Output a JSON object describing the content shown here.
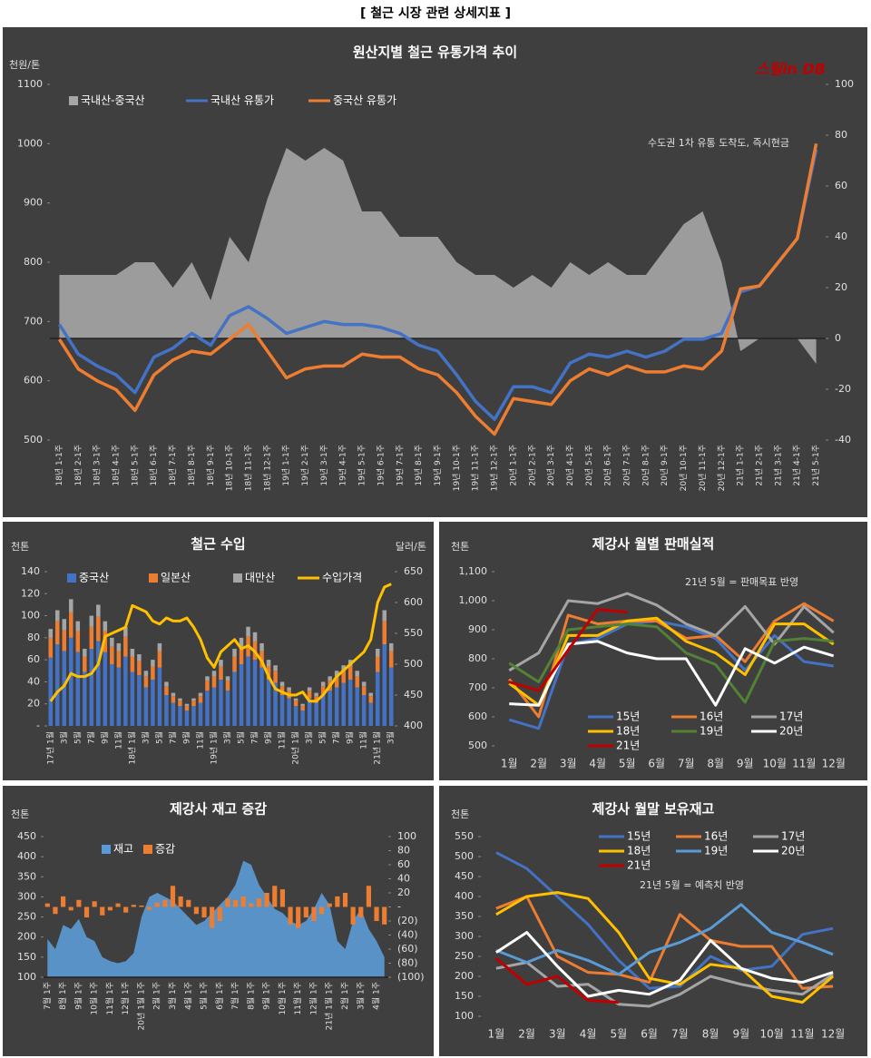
{
  "title": "[ 철근 시장 관련 상세지표 ]",
  "chart_data": [
    {
      "type": "combo",
      "title": "원산지별 철근 유통가격 추이",
      "y_label": "천원/톤",
      "annotation": "수도권 1차 유통 도착도, 즉시현금",
      "logo": "스틸in DB",
      "categories": [
        "18년 1-1주",
        "18년 2-1주",
        "18년 3-1주",
        "18년 4-1주",
        "18년 5-1주",
        "18년 6-1주",
        "18년 7-1주",
        "18년 8-1주",
        "18년 9-1주",
        "18년 10-1주",
        "18년 11-1주",
        "18년 12-1주",
        "19년 1-1주",
        "19년 2-1주",
        "19년 3-1주",
        "19년 4-1주",
        "19년 5-1주",
        "19년 6-1주",
        "19년 7-1주",
        "19년 8-1주",
        "19년 9-1주",
        "19년 10-1주",
        "19년 11-1주",
        "19년 12-1주",
        "20년 1-1주",
        "20년 2-1주",
        "20년 3-1주",
        "20년 4-1주",
        "20년 5-1주",
        "20년 6-1주",
        "20년 7-1주",
        "20년 8-1주",
        "20년 9-1주",
        "20년 10-1주",
        "20년 11-1주",
        "20년 12-1주",
        "21년 1-1주",
        "21년 2-1주",
        "21년 3-1주",
        "21년 4-1주",
        "21년 5-1주"
      ],
      "series": [
        {
          "name": "국내산-중국산",
          "mark": "area",
          "axis": "y2",
          "color": "#a6a6a6",
          "values": [
            25,
            25,
            25,
            25,
            30,
            30,
            20,
            30,
            15,
            40,
            30,
            55,
            75,
            70,
            75,
            70,
            50,
            50,
            40,
            40,
            40,
            30,
            25,
            25,
            20,
            25,
            20,
            30,
            25,
            30,
            25,
            25,
            35,
            45,
            50,
            30,
            -5,
            0,
            0,
            0,
            -10
          ]
        },
        {
          "name": "국내산 유통가",
          "mark": "line",
          "color": "#4472c4",
          "values": [
            695,
            645,
            625,
            610,
            580,
            640,
            655,
            680,
            660,
            710,
            725,
            705,
            680,
            690,
            700,
            695,
            695,
            690,
            680,
            660,
            650,
            610,
            565,
            535,
            590,
            590,
            580,
            630,
            645,
            640,
            650,
            640,
            650,
            670,
            670,
            680,
            750,
            760,
            800,
            840,
            990
          ]
        },
        {
          "name": "중국산 유통가",
          "mark": "line",
          "color": "#ed7d31",
          "values": [
            670,
            620,
            600,
            585,
            550,
            610,
            635,
            650,
            645,
            670,
            695,
            650,
            605,
            620,
            625,
            625,
            645,
            640,
            640,
            620,
            610,
            580,
            540,
            510,
            570,
            565,
            560,
            600,
            620,
            610,
            625,
            615,
            615,
            625,
            620,
            650,
            755,
            760,
            800,
            840,
            1000
          ]
        }
      ],
      "ylim": [
        500,
        1100
      ],
      "yticks": [
        500,
        600,
        700,
        800,
        900,
        1000,
        1100
      ],
      "y2lim": [
        -40,
        100
      ],
      "y2ticks": [
        -40,
        -20,
        0,
        20,
        40,
        60,
        80,
        100
      ]
    },
    {
      "type": "combo",
      "title": "철근 수입",
      "y_label": "천톤",
      "y2_label": "달러/톤",
      "categories": [
        "17년 1월",
        null,
        "3월",
        null,
        "5월",
        null,
        "7월",
        null,
        "9월",
        null,
        "11월",
        null,
        "18년 1월",
        null,
        "3월",
        null,
        "5월",
        null,
        "7월",
        null,
        "9월",
        null,
        "11월",
        null,
        "19년 1월",
        null,
        "3월",
        null,
        "5월",
        null,
        "7월",
        null,
        "9월",
        null,
        "11월",
        null,
        "20년 1월",
        null,
        "3월",
        null,
        "5월",
        null,
        "7월",
        null,
        "9월",
        null,
        "11월",
        null,
        "21년 1월",
        null,
        "3월"
      ],
      "series": [
        {
          "name": "중국산",
          "mark": "bar",
          "stack": true,
          "color": "#4472c4",
          "values": [
            62,
            74,
            68,
            80,
            67,
            49,
            70,
            77,
            67,
            56,
            53,
            63,
            49,
            46,
            35,
            42,
            53,
            28,
            21,
            18,
            14,
            18,
            21,
            32,
            35,
            42,
            32,
            49,
            56,
            63,
            60,
            53,
            42,
            39,
            28,
            25,
            18,
            14,
            25,
            21,
            28,
            32,
            35,
            39,
            42,
            35,
            28,
            21,
            49,
            74,
            53
          ]
        },
        {
          "name": "일본산",
          "mark": "bar",
          "stack": true,
          "color": "#ed7d31",
          "values": [
            18,
            21,
            19,
            23,
            19,
            14,
            20,
            22,
            19,
            16,
            15,
            18,
            14,
            13,
            10,
            12,
            15,
            8,
            6,
            5,
            4,
            5,
            6,
            9,
            10,
            12,
            9,
            14,
            16,
            18,
            17,
            15,
            12,
            11,
            8,
            7,
            5,
            4,
            7,
            6,
            8,
            9,
            10,
            11,
            12,
            10,
            8,
            6,
            14,
            21,
            15
          ]
        },
        {
          "name": "대만산",
          "mark": "bar",
          "stack": true,
          "color": "#a5a5a5",
          "values": [
            8,
            10,
            10,
            12,
            9,
            7,
            10,
            11,
            9,
            8,
            7,
            9,
            7,
            6,
            5,
            6,
            7,
            4,
            3,
            2,
            2,
            2,
            3,
            4,
            5,
            6,
            4,
            7,
            8,
            9,
            8,
            7,
            6,
            5,
            4,
            3,
            2,
            2,
            3,
            3,
            4,
            4,
            5,
            5,
            6,
            5,
            4,
            3,
            7,
            10,
            7
          ]
        },
        {
          "name": "수입가격",
          "mark": "line",
          "axis": "y2",
          "color": "#ffc000",
          "values": [
            440,
            455,
            465,
            485,
            480,
            480,
            485,
            500,
            545,
            550,
            555,
            560,
            595,
            590,
            585,
            570,
            565,
            575,
            570,
            570,
            575,
            560,
            540,
            510,
            495,
            520,
            530,
            540,
            525,
            530,
            520,
            505,
            480,
            460,
            455,
            450,
            450,
            455,
            440,
            440,
            450,
            465,
            480,
            490,
            500,
            510,
            520,
            540,
            600,
            625,
            630
          ]
        }
      ],
      "ylim": [
        0,
        140
      ],
      "yticks": [
        {
          "value": 0,
          "label": "-"
        },
        20,
        40,
        60,
        80,
        100,
        120,
        140
      ],
      "y2lim": [
        400,
        650
      ],
      "y2ticks": [
        400,
        450,
        500,
        550,
        600,
        650
      ]
    },
    {
      "type": "line",
      "title": "제강사 월별 판매실적",
      "y_label": "천톤",
      "annotation": "21년 5월 = 판매목표 반영",
      "categories": [
        "1월",
        "2월",
        "3월",
        "4월",
        "5월",
        "6월",
        "7월",
        "8월",
        "9월",
        "10월",
        "11월",
        "12월"
      ],
      "series": [
        {
          "name": "15년",
          "color": "#4472c4",
          "values": [
            590,
            560,
            850,
            870,
            920,
            930,
            910,
            870,
            760,
            880,
            790,
            775
          ]
        },
        {
          "name": "16년",
          "color": "#ed7d31",
          "values": [
            730,
            600,
            950,
            920,
            930,
            930,
            870,
            880,
            790,
            930,
            990,
            930
          ]
        },
        {
          "name": "17년",
          "color": "#a5a5a5",
          "values": [
            760,
            820,
            1000,
            990,
            1025,
            985,
            920,
            880,
            980,
            850,
            980,
            890
          ]
        },
        {
          "name": "18년",
          "color": "#ffc000",
          "values": [
            715,
            640,
            880,
            880,
            930,
            940,
            860,
            820,
            745,
            920,
            920,
            850
          ]
        },
        {
          "name": "19년",
          "color": "#548235",
          "values": [
            785,
            720,
            900,
            910,
            920,
            910,
            820,
            780,
            650,
            860,
            870,
            860
          ]
        },
        {
          "name": "20년",
          "color": "#ffffff",
          "values": [
            645,
            640,
            850,
            860,
            820,
            800,
            800,
            640,
            835,
            785,
            840,
            810
          ]
        },
        {
          "name": "21년",
          "color": "#c00000",
          "values": [
            720,
            690,
            830,
            970,
            960,
            null,
            null,
            null,
            null,
            null,
            null,
            null
          ]
        }
      ],
      "ylim": [
        500,
        1100
      ],
      "yticks": [
        500,
        600,
        700,
        800,
        900,
        {
          "value": 1000,
          "label": "1,000"
        },
        {
          "value": 1100,
          "label": "1,100"
        }
      ]
    },
    {
      "type": "combo",
      "title": "제강사 재고 증감",
      "y_label": "천톤",
      "categories": [
        "7월 1주",
        null,
        "8월 1주",
        null,
        "9월 1주",
        null,
        "10월 1주",
        null,
        "11월 1주",
        null,
        "12월 1주",
        null,
        "20년 1월 1주",
        null,
        "2월 1주",
        null,
        "3월 1주",
        null,
        "4월 1주",
        null,
        "5월 1주",
        null,
        "6월 1주",
        null,
        "7월 1주",
        null,
        "8월 1주",
        null,
        "9월 1주",
        null,
        "10월 1주",
        null,
        "11월 1주",
        null,
        "12월 1주",
        null,
        "21년 1월 1주",
        null,
        "2월 1주",
        null,
        "3월 1주",
        null,
        "4월 1주",
        null
      ],
      "series": [
        {
          "name": "재고",
          "mark": "area",
          "color": "#5b9bd5",
          "values": [
            195,
            170,
            230,
            220,
            245,
            200,
            190,
            150,
            140,
            135,
            140,
            160,
            250,
            300,
            310,
            300,
            290,
            270,
            250,
            230,
            240,
            260,
            280,
            300,
            330,
            390,
            380,
            330,
            300,
            270,
            260,
            240,
            230,
            240,
            270,
            310,
            280,
            190,
            170,
            240,
            270,
            220,
            190,
            150
          ]
        },
        {
          "name": "증감",
          "mark": "bar",
          "axis": "y2",
          "color": "#ed7d31",
          "values": [
            5,
            -10,
            15,
            -5,
            10,
            -15,
            8,
            -12,
            -5,
            5,
            -8,
            3,
            2,
            -4,
            6,
            10,
            30,
            15,
            10,
            -10,
            -15,
            -30,
            -20,
            12,
            10,
            15,
            5,
            12,
            20,
            30,
            25,
            -25,
            -30,
            -15,
            -20,
            -10,
            5,
            15,
            20,
            -25,
            -15,
            30,
            -20,
            -25
          ]
        }
      ],
      "ylim": [
        100,
        450
      ],
      "yticks": [
        100,
        150,
        200,
        250,
        300,
        350,
        400,
        450
      ],
      "y2lim": [
        -100,
        100
      ],
      "y2ticks": [
        {
          "value": -100,
          "label": "(100)"
        },
        {
          "value": -80,
          "label": "(80)"
        },
        {
          "value": -60,
          "label": "(60)"
        },
        {
          "value": -40,
          "label": "(40)"
        },
        {
          "value": -20,
          "label": "(20)"
        },
        {
          "value": 0,
          "label": "-"
        },
        20,
        40,
        60,
        80,
        100
      ]
    },
    {
      "type": "line",
      "title": "제강사 월말 보유재고",
      "y_label": "천톤",
      "annotation": "21년 5월 = 예측치 반영",
      "categories": [
        "1월",
        "2월",
        "3월",
        "4월",
        "5월",
        "6월",
        "7월",
        "8월",
        "9월",
        "10월",
        "11월",
        "12월"
      ],
      "series": [
        {
          "name": "15년",
          "color": "#4472c4",
          "values": [
            510,
            470,
            400,
            330,
            240,
            170,
            175,
            250,
            215,
            225,
            305,
            320
          ]
        },
        {
          "name": "16년",
          "color": "#ed7d31",
          "values": [
            370,
            400,
            250,
            210,
            205,
            185,
            355,
            290,
            275,
            275,
            170,
            175
          ]
        },
        {
          "name": "17년",
          "color": "#a5a5a5",
          "values": [
            220,
            235,
            175,
            180,
            130,
            125,
            155,
            200,
            180,
            165,
            155,
            205
          ]
        },
        {
          "name": "18년",
          "color": "#ffc000",
          "values": [
            355,
            400,
            410,
            395,
            310,
            195,
            180,
            230,
            220,
            150,
            135,
            200
          ]
        },
        {
          "name": "19년",
          "color": "#5b9bd5",
          "values": [
            265,
            235,
            265,
            240,
            205,
            260,
            285,
            320,
            380,
            310,
            285,
            255
          ]
        },
        {
          "name": "20년",
          "color": "#ffffff",
          "values": [
            260,
            310,
            225,
            150,
            165,
            155,
            190,
            290,
            220,
            195,
            185,
            210
          ]
        },
        {
          "name": "21년",
          "color": "#c00000",
          "values": [
            245,
            180,
            200,
            140,
            135,
            null,
            null,
            null,
            null,
            null,
            null,
            null
          ]
        }
      ],
      "ylim": [
        100,
        550
      ],
      "yticks": [
        100,
        150,
        200,
        250,
        300,
        350,
        400,
        450,
        500,
        550
      ]
    }
  ]
}
